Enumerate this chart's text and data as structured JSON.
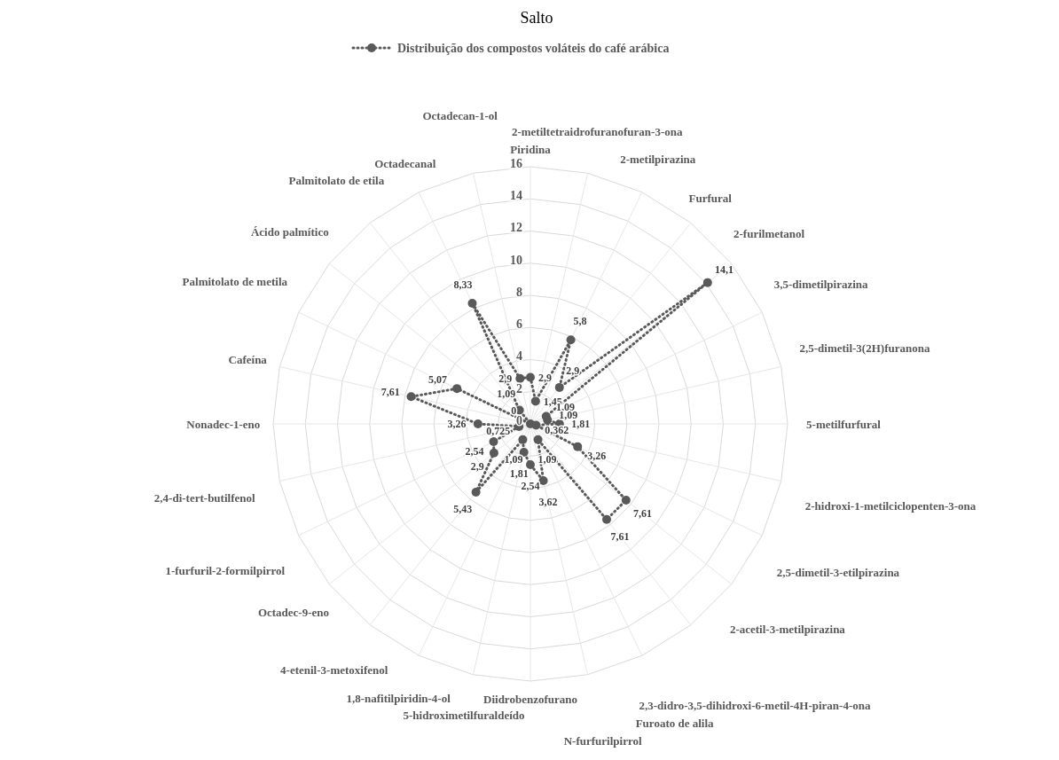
{
  "chart_data": {
    "type": "radar",
    "title": "Salto",
    "categories": [
      "Piridina",
      "2-metiltetraidrofuranofuran-3-ona",
      "2-metilpirazina",
      "Furfural",
      "2-furilmetanol",
      "3,5-dimetilpirazina",
      "2,5-dimetil-3(2H)furanona",
      "5-metilfurfural",
      "2-hidroxi-1-metilciclopenten-3-ona",
      "2,5-dimetil-3-etilpirazina",
      "2-acetil-3-metilpirazina",
      "2,3-didro-3,5-dihidroxi-6-metil-4H-piran-4-ona",
      "Furoato de alila",
      "N-furfurilpirrol",
      "Diidrobenzofurano",
      "5-hidroximetilfuraldeído",
      "1,8-nafitilpiridin-4-ol",
      "4-etenil-3-metoxifenol",
      "Octadec-9-eno",
      "1-furfuril-2-formilpirrol",
      "2,4-di-tert-butilfenol",
      "Nonadec-1-eno",
      "Cafeína",
      "Palmitolato de metila",
      "Ácido palmítico",
      "Palmitolato de etila",
      "Octadecanal",
      "Octadecan-1-ol"
    ],
    "series": [
      {
        "name": "Distribuição dos compostos voláteis do café arábica",
        "color": "#595959",
        "values": [
          2.9,
          1.45,
          5.8,
          2.9,
          14.1,
          1.09,
          1.09,
          1.81,
          0.362,
          3.26,
          7.61,
          7.61,
          1.09,
          3.62,
          2.54,
          1.81,
          1.09,
          5.43,
          2.9,
          2.54,
          0.725,
          3.26,
          7.61,
          5.07,
          0,
          1.09,
          8.33,
          2.9
        ],
        "value_labels": [
          "2,9",
          "1,45",
          "5,8",
          "2,9",
          "14,1",
          "1,09",
          "1,09",
          "1,81",
          "0,362",
          "3,26",
          "7,61",
          "7,61",
          "1,09",
          "3,62",
          "2,54",
          "1,81",
          "1,09",
          "5,43",
          "2,9",
          "2,54",
          "0,725",
          "3,26",
          "7,61",
          "5,07",
          "0",
          "1,09",
          "8,33",
          "2,9"
        ]
      }
    ],
    "ylim": [
      0,
      16
    ],
    "yticks": [
      0,
      2,
      4,
      6,
      8,
      10,
      12,
      14,
      16
    ],
    "grid": true,
    "legend": "top",
    "marker": "circle",
    "line_style": "dotted"
  }
}
